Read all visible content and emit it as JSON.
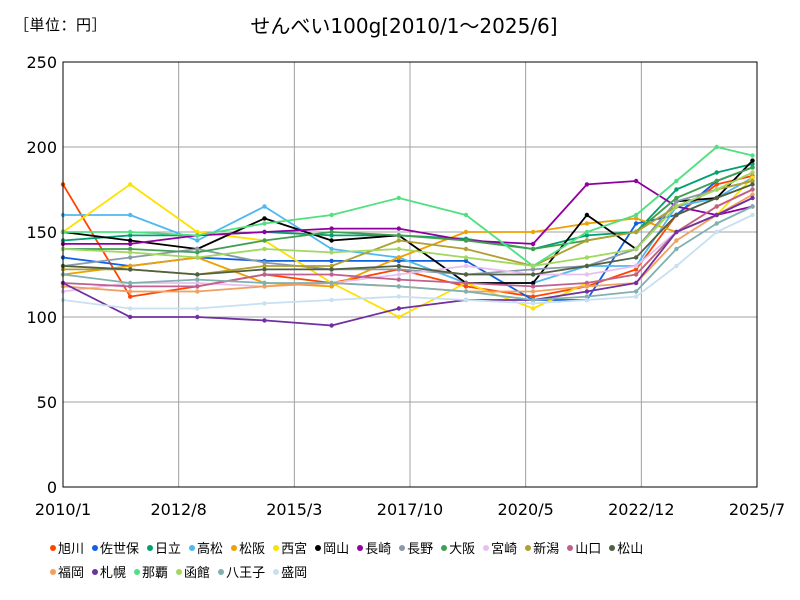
{
  "unit_label": "［単位：円］",
  "chart_data": {
    "type": "line",
    "title": "せんべい100g[2010/1～2025/6]",
    "ylim": [
      0,
      250
    ],
    "yticks": [
      0,
      50,
      100,
      150,
      200,
      250
    ],
    "xlim": [
      2010.0,
      2025.5
    ],
    "xticks": [
      {
        "label": "2010/1",
        "t": 2010.0
      },
      {
        "label": "2012/8",
        "t": 2012.583
      },
      {
        "label": "2015/3",
        "t": 2015.167
      },
      {
        "label": "2017/10",
        "t": 2017.75
      },
      {
        "label": "2020/5",
        "t": 2020.333
      },
      {
        "label": "2022/12",
        "t": 2022.917
      },
      {
        "label": "2025/7",
        "t": 2025.5
      }
    ],
    "grid": true,
    "legend_position": "bottom",
    "series": [
      {
        "name": "旭川",
        "color": "#ff4500",
        "x": [
          2010.0,
          2011.5,
          2013.0,
          2014.5,
          2016.0,
          2017.5,
          2019.0,
          2020.5,
          2021.7,
          2022.8,
          2023.7,
          2024.6,
          2025.4
        ],
        "values": [
          178,
          112,
          118,
          125,
          120,
          128,
          118,
          112,
          118,
          128,
          160,
          178,
          183
        ]
      },
      {
        "name": "佐世保",
        "color": "#1060e0",
        "x": [
          2010.0,
          2011.5,
          2013.0,
          2014.5,
          2016.0,
          2017.5,
          2019.0,
          2020.5,
          2021.7,
          2022.8,
          2023.7,
          2024.6,
          2025.4
        ],
        "values": [
          135,
          130,
          135,
          133,
          133,
          133,
          133,
          110,
          110,
          155,
          160,
          180,
          188
        ]
      },
      {
        "name": "日立",
        "color": "#00a070",
        "x": [
          2010.0,
          2011.5,
          2013.0,
          2014.5,
          2016.0,
          2017.5,
          2019.0,
          2020.5,
          2021.7,
          2022.8,
          2023.7,
          2024.6,
          2025.4
        ],
        "values": [
          145,
          148,
          148,
          150,
          148,
          148,
          146,
          140,
          148,
          150,
          175,
          185,
          190
        ]
      },
      {
        "name": "高松",
        "color": "#50b8f0",
        "x": [
          2010.0,
          2011.5,
          2013.0,
          2014.5,
          2016.0,
          2017.5,
          2019.0,
          2020.5,
          2021.7,
          2022.8,
          2023.7,
          2024.6,
          2025.4
        ],
        "values": [
          160,
          160,
          145,
          165,
          140,
          135,
          120,
          120,
          130,
          130,
          165,
          170,
          182
        ]
      },
      {
        "name": "松阪",
        "color": "#f0a000",
        "x": [
          2010.0,
          2011.5,
          2013.0,
          2014.5,
          2016.0,
          2017.5,
          2019.0,
          2020.5,
          2021.7,
          2022.8,
          2023.7,
          2024.6,
          2025.4
        ],
        "values": [
          125,
          130,
          135,
          120,
          118,
          135,
          150,
          150,
          155,
          158,
          150,
          165,
          175
        ]
      },
      {
        "name": "西宮",
        "color": "#ffe000",
        "x": [
          2010.0,
          2011.5,
          2013.0,
          2014.5,
          2016.0,
          2017.5,
          2019.0,
          2020.5,
          2021.7,
          2022.8,
          2023.7,
          2024.6,
          2025.4
        ],
        "values": [
          150,
          178,
          150,
          145,
          120,
          100,
          120,
          105,
          120,
          125,
          150,
          160,
          182
        ]
      },
      {
        "name": "岡山",
        "color": "#000000",
        "x": [
          2010.0,
          2011.5,
          2013.0,
          2014.5,
          2016.0,
          2017.5,
          2019.0,
          2020.5,
          2021.7,
          2022.8,
          2023.7,
          2024.6,
          2025.4
        ],
        "values": [
          150,
          145,
          140,
          158,
          145,
          148,
          120,
          120,
          160,
          140,
          168,
          170,
          192
        ]
      },
      {
        "name": "長崎",
        "color": "#9000a0",
        "x": [
          2010.0,
          2011.5,
          2013.0,
          2014.5,
          2016.0,
          2017.5,
          2019.0,
          2020.5,
          2021.7,
          2022.8,
          2023.7,
          2024.6,
          2025.4
        ],
        "values": [
          143,
          143,
          148,
          150,
          152,
          152,
          145,
          143,
          178,
          180,
          165,
          160,
          165
        ]
      },
      {
        "name": "長野",
        "color": "#8a9aaa",
        "x": [
          2010.0,
          2011.5,
          2013.0,
          2014.5,
          2016.0,
          2017.5,
          2019.0,
          2020.5,
          2021.7,
          2022.8,
          2023.7,
          2024.6,
          2025.4
        ],
        "values": [
          130,
          135,
          140,
          132,
          128,
          128,
          125,
          128,
          130,
          140,
          168,
          175,
          180
        ]
      },
      {
        "name": "大阪",
        "color": "#40a050",
        "x": [
          2010.0,
          2011.5,
          2013.0,
          2014.5,
          2016.0,
          2017.5,
          2019.0,
          2020.5,
          2021.7,
          2022.8,
          2023.7,
          2024.6,
          2025.4
        ],
        "values": [
          140,
          140,
          138,
          145,
          150,
          148,
          145,
          140,
          145,
          150,
          170,
          180,
          188
        ]
      },
      {
        "name": "宮崎",
        "color": "#e8c0f0",
        "x": [
          2010.0,
          2011.5,
          2013.0,
          2014.5,
          2016.0,
          2017.5,
          2019.0,
          2020.5,
          2021.7,
          2022.8,
          2023.7,
          2024.6,
          2025.4
        ],
        "values": [
          115,
          120,
          120,
          118,
          120,
          125,
          130,
          125,
          125,
          130,
          150,
          160,
          170
        ]
      },
      {
        "name": "新潟",
        "color": "#b0a030",
        "x": [
          2010.0,
          2011.5,
          2013.0,
          2014.5,
          2016.0,
          2017.5,
          2019.0,
          2020.5,
          2021.7,
          2022.8,
          2023.7,
          2024.6,
          2025.4
        ],
        "values": [
          128,
          128,
          125,
          130,
          130,
          145,
          140,
          130,
          145,
          150,
          165,
          175,
          180
        ]
      },
      {
        "name": "山口",
        "color": "#c06090",
        "x": [
          2010.0,
          2011.5,
          2013.0,
          2014.5,
          2016.0,
          2017.5,
          2019.0,
          2020.5,
          2021.7,
          2022.8,
          2023.7,
          2024.6,
          2025.4
        ],
        "values": [
          120,
          118,
          118,
          125,
          125,
          122,
          120,
          118,
          120,
          125,
          150,
          165,
          175
        ]
      },
      {
        "name": "松山",
        "color": "#506040",
        "x": [
          2010.0,
          2011.5,
          2013.0,
          2014.5,
          2016.0,
          2017.5,
          2019.0,
          2020.5,
          2021.7,
          2022.8,
          2023.7,
          2024.6,
          2025.4
        ],
        "values": [
          130,
          128,
          125,
          128,
          128,
          130,
          125,
          125,
          130,
          135,
          160,
          170,
          178
        ]
      },
      {
        "name": "福岡",
        "color": "#f0a060",
        "x": [
          2010.0,
          2011.5,
          2013.0,
          2014.5,
          2016.0,
          2017.5,
          2019.0,
          2020.5,
          2021.7,
          2022.8,
          2023.7,
          2024.6,
          2025.4
        ],
        "values": [
          118,
          115,
          115,
          118,
          120,
          118,
          115,
          115,
          118,
          120,
          145,
          160,
          172
        ]
      },
      {
        "name": "札幌",
        "color": "#7030a0",
        "x": [
          2010.0,
          2011.5,
          2013.0,
          2014.5,
          2016.0,
          2017.5,
          2019.0,
          2020.5,
          2021.7,
          2022.8,
          2023.7,
          2024.6,
          2025.4
        ],
        "values": [
          120,
          100,
          100,
          98,
          95,
          105,
          110,
          110,
          115,
          120,
          150,
          160,
          170
        ]
      },
      {
        "name": "那覇",
        "color": "#50e080",
        "x": [
          2010.0,
          2011.5,
          2013.0,
          2014.5,
          2016.0,
          2017.5,
          2019.0,
          2020.5,
          2021.7,
          2022.8,
          2023.7,
          2024.6,
          2025.4
        ],
        "values": [
          150,
          150,
          148,
          155,
          160,
          170,
          160,
          130,
          150,
          160,
          180,
          200,
          195
        ]
      },
      {
        "name": "函館",
        "color": "#a0d860",
        "x": [
          2010.0,
          2011.5,
          2013.0,
          2014.5,
          2016.0,
          2017.5,
          2019.0,
          2020.5,
          2021.7,
          2022.8,
          2023.7,
          2024.6,
          2025.4
        ],
        "values": [
          140,
          138,
          135,
          140,
          138,
          140,
          135,
          130,
          135,
          140,
          165,
          175,
          185
        ]
      },
      {
        "name": "八王子",
        "color": "#80b0b0",
        "x": [
          2010.0,
          2011.5,
          2013.0,
          2014.5,
          2016.0,
          2017.5,
          2019.0,
          2020.5,
          2021.7,
          2022.8,
          2023.7,
          2024.6,
          2025.4
        ],
        "values": [
          125,
          120,
          122,
          120,
          120,
          118,
          115,
          110,
          112,
          115,
          140,
          155,
          165
        ]
      },
      {
        "name": "盛岡",
        "color": "#c8e0f0",
        "x": [
          2010.0,
          2011.5,
          2013.0,
          2014.5,
          2016.0,
          2017.5,
          2019.0,
          2020.5,
          2021.7,
          2022.8,
          2023.7,
          2024.6,
          2025.4
        ],
        "values": [
          110,
          105,
          105,
          108,
          110,
          112,
          110,
          108,
          110,
          112,
          130,
          150,
          160
        ]
      }
    ]
  }
}
